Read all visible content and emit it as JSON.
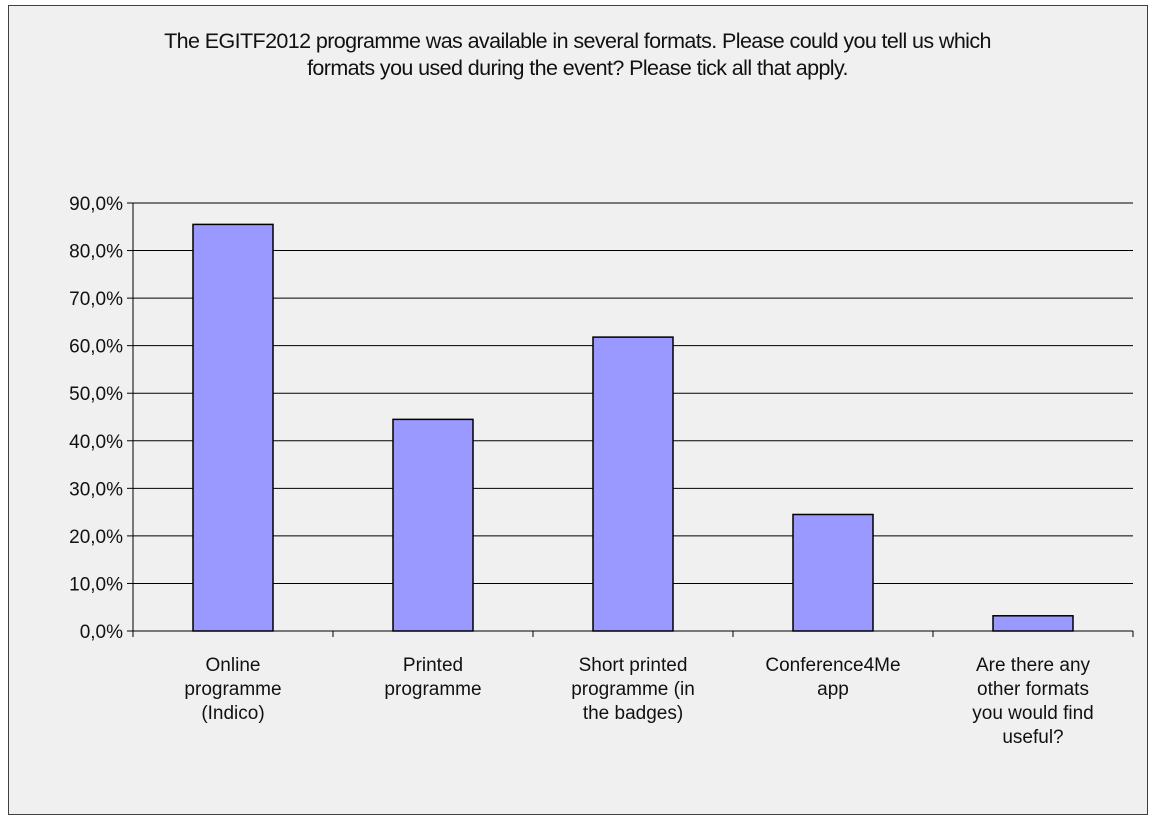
{
  "chart_data": {
    "type": "bar",
    "title": "The EGITF2012 programme was available in several formats. Please could you tell us which formats you used during the event? Please tick all that apply.",
    "categories": [
      "Online programme (Indico)",
      "Printed programme",
      "Short printed programme (in the badges)",
      "Conference4Me app",
      "Are there any other formats you would find useful?"
    ],
    "category_lines": [
      [
        "Online",
        "programme",
        "(Indico)"
      ],
      [
        "Printed",
        "programme"
      ],
      [
        "Short printed",
        "programme (in",
        "the badges)"
      ],
      [
        "Conference4Me",
        "app"
      ],
      [
        "Are there any",
        "other formats",
        "you would find",
        "useful?"
      ]
    ],
    "values": [
      85.5,
      44.5,
      61.8,
      24.5,
      3.2
    ],
    "ylim": [
      0,
      90
    ],
    "yticks": [
      0,
      10,
      20,
      30,
      40,
      50,
      60,
      70,
      80,
      90
    ],
    "ytick_labels": [
      "0,0%",
      "10,0%",
      "20,0%",
      "30,0%",
      "40,0%",
      "50,0%",
      "60,0%",
      "70,0%",
      "80,0%",
      "90,0%"
    ],
    "xlabel": "",
    "ylabel": "",
    "grid": true,
    "legend": "none",
    "bar_color": "#9999ff",
    "bar_edge_color": "#000000",
    "background_color": "#f0f0f0"
  }
}
